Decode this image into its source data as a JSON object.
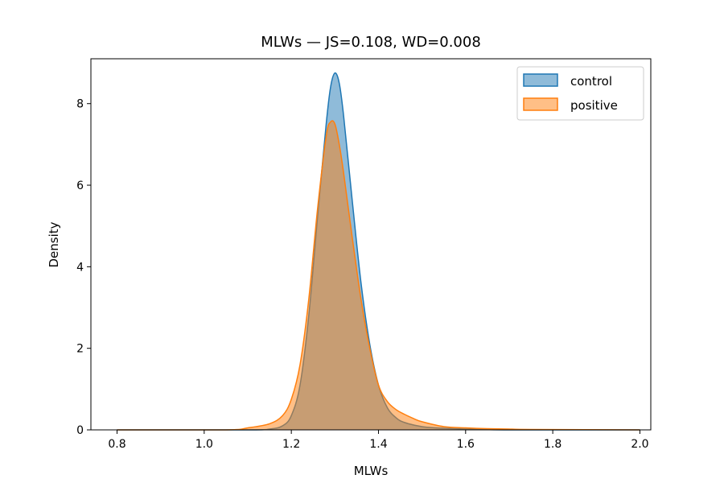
{
  "chart_data": {
    "type": "area",
    "title": "MLWs — JS=0.108, WD=0.008",
    "xlabel": "MLWs",
    "ylabel": "Density",
    "xlim": [
      0.74,
      2.025
    ],
    "ylim": [
      0,
      9.1
    ],
    "xticks": [
      0.8,
      1.0,
      1.2,
      1.4,
      1.6,
      1.8,
      2.0
    ],
    "xtick_labels": [
      "0.8",
      "1.0",
      "1.2",
      "1.4",
      "1.6",
      "1.8",
      "2.0"
    ],
    "yticks": [
      0,
      2,
      4,
      6,
      8
    ],
    "ytick_labels": [
      "0",
      "2",
      "4",
      "6",
      "8"
    ],
    "grid": false,
    "legend_position": "top-right",
    "series": [
      {
        "name": "control",
        "color": "#1f77b4",
        "x": [
          0.8,
          1.1,
          1.15,
          1.18,
          1.2,
          1.22,
          1.24,
          1.26,
          1.28,
          1.29,
          1.3,
          1.31,
          1.32,
          1.34,
          1.36,
          1.38,
          1.4,
          1.42,
          1.44,
          1.46,
          1.5,
          1.55,
          1.6,
          1.7,
          2.0
        ],
        "y": [
          0.0,
          0.0,
          0.02,
          0.1,
          0.35,
          1.1,
          2.8,
          5.2,
          7.5,
          8.4,
          8.75,
          8.5,
          7.7,
          5.6,
          3.6,
          2.1,
          1.1,
          0.55,
          0.3,
          0.18,
          0.08,
          0.04,
          0.02,
          0.0,
          0.0
        ]
      },
      {
        "name": "positive",
        "color": "#ff7f0e",
        "x": [
          0.8,
          1.05,
          1.1,
          1.15,
          1.18,
          1.2,
          1.22,
          1.24,
          1.26,
          1.28,
          1.29,
          1.3,
          1.31,
          1.32,
          1.34,
          1.36,
          1.38,
          1.4,
          1.42,
          1.44,
          1.46,
          1.48,
          1.5,
          1.55,
          1.6,
          1.65,
          1.7,
          1.75,
          2.0
        ],
        "y": [
          0.0,
          0.0,
          0.05,
          0.15,
          0.35,
          0.75,
          1.6,
          3.2,
          5.4,
          7.2,
          7.55,
          7.5,
          7.0,
          6.3,
          4.7,
          3.2,
          2.0,
          1.1,
          0.7,
          0.5,
          0.38,
          0.28,
          0.2,
          0.08,
          0.05,
          0.03,
          0.02,
          0.01,
          0.0
        ]
      }
    ]
  }
}
